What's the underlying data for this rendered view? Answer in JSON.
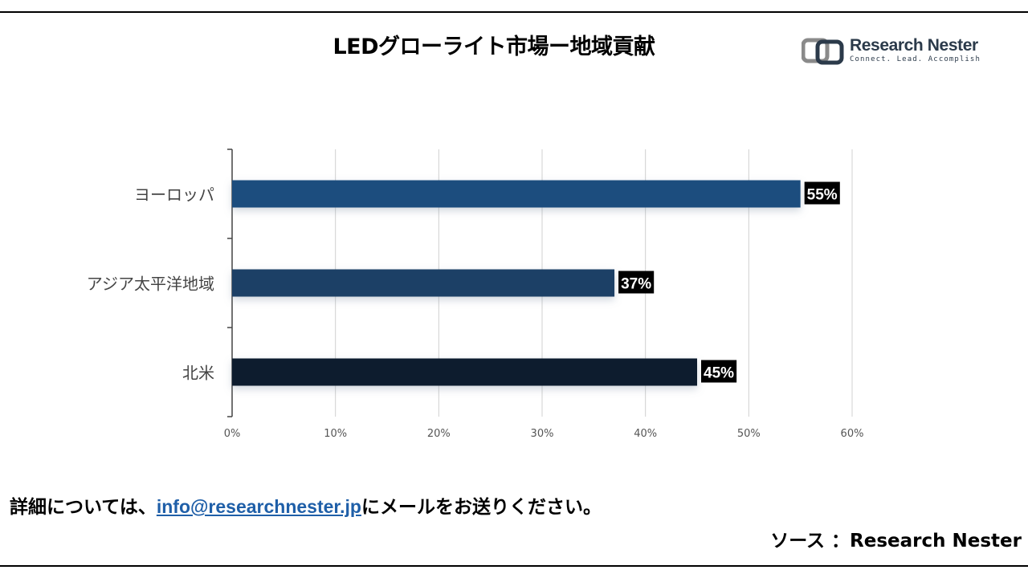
{
  "title": "LEDグローライト市場ー地域貢献",
  "logo": {
    "name": "Research Nester",
    "tagline": "Connect. Lead. Accomplish",
    "icon": "research-nester-logo-icon",
    "color": "#2b3a4a",
    "accent": "#8a8a8a"
  },
  "chart_data": {
    "type": "bar",
    "orientation": "horizontal",
    "title": "LEDグローライト市場ー地域貢献",
    "categories": [
      "ヨーロッパ",
      "アジア太平洋地域",
      "北米"
    ],
    "values": [
      55,
      37,
      45
    ],
    "value_labels": [
      "55%",
      "37%",
      "45%"
    ],
    "bar_colors": [
      "#1f4e7e",
      "#1e3f66",
      "#0f1e2e"
    ],
    "xlim": [
      0,
      60
    ],
    "x_ticks": [
      0,
      10,
      20,
      30,
      40,
      50,
      60
    ],
    "x_tick_labels": [
      "0%",
      "10%",
      "20%",
      "30%",
      "40%",
      "50%",
      "60%"
    ],
    "xlabel": "",
    "ylabel": "",
    "grid": true,
    "legend": "none"
  },
  "footer": {
    "prefix": "詳細については、",
    "email": "info@researchnester.jp",
    "suffix": "にメールをお送りください。"
  },
  "source": "ソース ：Research Nester"
}
